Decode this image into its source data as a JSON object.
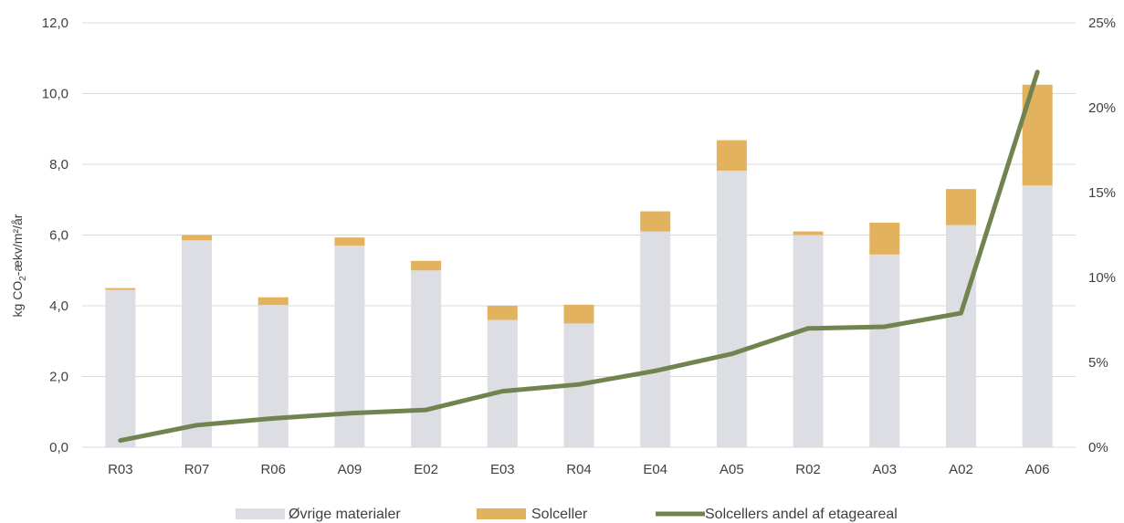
{
  "chart_data": {
    "type": "bar",
    "stacked": true,
    "categories": [
      "R03",
      "R07",
      "R06",
      "A09",
      "E02",
      "E03",
      "R04",
      "E04",
      "A05",
      "R02",
      "A03",
      "A02",
      "A06"
    ],
    "series": [
      {
        "name": "Øvrige materialer",
        "axis": "left",
        "kind": "bar",
        "values": [
          4.45,
          5.85,
          4.02,
          5.7,
          5.0,
          3.6,
          3.5,
          6.1,
          7.82,
          6.0,
          5.45,
          6.28,
          7.4
        ]
      },
      {
        "name": "Solceller",
        "axis": "left",
        "kind": "bar",
        "values": [
          0.05,
          0.15,
          0.22,
          0.23,
          0.27,
          0.4,
          0.53,
          0.57,
          0.86,
          0.1,
          0.9,
          1.02,
          2.85
        ]
      },
      {
        "name": "Solcellers andel af etageareal",
        "axis": "right",
        "kind": "line",
        "values": [
          0.004,
          0.013,
          0.017,
          0.02,
          0.022,
          0.033,
          0.037,
          0.045,
          0.055,
          0.07,
          0.071,
          0.079,
          0.221
        ]
      }
    ],
    "ylabel": "kg CO2-ækv/m²/år",
    "ylabel_parts": {
      "pre": "kg CO",
      "sub": "2",
      "post": "-ækv/m²/år"
    },
    "ylim": [
      0,
      12
    ],
    "y_ticks": [
      "0,0",
      "2,0",
      "4,0",
      "6,0",
      "8,0",
      "10,0",
      "12,0"
    ],
    "y2lim": [
      0,
      0.25
    ],
    "y2_ticks": [
      "0%",
      "5%",
      "10%",
      "15%",
      "20%",
      "25%"
    ],
    "grid": true,
    "legend_position": "bottom",
    "colors": {
      "Øvrige materialer": "#dcdee3",
      "Solceller": "#e2b25e",
      "Solcellers andel af etageareal": "#718450"
    }
  }
}
